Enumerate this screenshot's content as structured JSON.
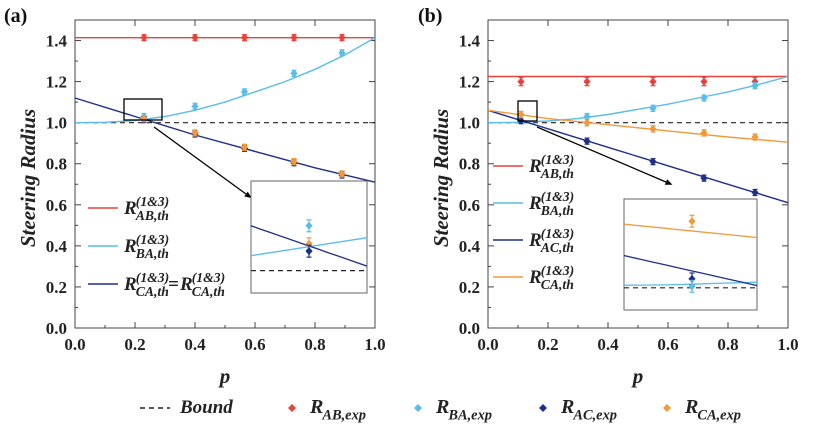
{
  "colors": {
    "AB": "#e8423a",
    "BA": "#5bbce8",
    "AC": "#1f2f88",
    "CA": "#f09a3a",
    "bound": "#222222",
    "axis": "#444444"
  },
  "chart_data": [
    {
      "panel": "(a)",
      "type": "line",
      "xlabel": "p",
      "ylabel": "Steering Radius",
      "xlim": [
        0.0,
        1.0
      ],
      "ylim": [
        0.0,
        1.5
      ],
      "xticks": [
        "0.0",
        "0.2",
        "0.4",
        "0.6",
        "0.8",
        "1.0"
      ],
      "yticks": [
        "0.0",
        "0.2",
        "0.4",
        "0.6",
        "0.8",
        "1.0",
        "1.2",
        "1.4"
      ],
      "bound": 1.0,
      "theory": [
        {
          "key": "AB",
          "x": [
            0,
            0.2,
            0.4,
            0.6,
            0.8,
            1.0
          ],
          "y": [
            1.414,
            1.414,
            1.414,
            1.414,
            1.414,
            1.414
          ]
        },
        {
          "key": "BA",
          "x": [
            0,
            0.1,
            0.2,
            0.3,
            0.4,
            0.5,
            0.6,
            0.7,
            0.8,
            0.9,
            1.0
          ],
          "y": [
            1.0,
            1.002,
            1.01,
            1.03,
            1.06,
            1.1,
            1.15,
            1.2,
            1.26,
            1.33,
            1.414
          ]
        },
        {
          "key": "AC",
          "x": [
            0,
            0.2,
            0.4,
            0.6,
            0.8,
            1.0
          ],
          "y": [
            1.12,
            1.03,
            0.94,
            0.86,
            0.78,
            0.71
          ]
        }
      ],
      "experiment": [
        {
          "key": "AB",
          "x": [
            0.23,
            0.4,
            0.565,
            0.73,
            0.89
          ],
          "y": [
            1.414,
            1.414,
            1.414,
            1.414,
            1.414
          ],
          "err": [
            0.008,
            0.008,
            0.008,
            0.008,
            0.008
          ]
        },
        {
          "key": "BA",
          "x": [
            0.23,
            0.4,
            0.565,
            0.73,
            0.89
          ],
          "y": [
            1.03,
            1.08,
            1.15,
            1.24,
            1.34
          ],
          "err": [
            0.012,
            0.012,
            0.012,
            0.012,
            0.012
          ]
        },
        {
          "key": "AC",
          "x": [
            0.23,
            0.4,
            0.565,
            0.73,
            0.89
          ],
          "y": [
            1.015,
            0.945,
            0.875,
            0.805,
            0.745
          ],
          "err": [
            0.01,
            0.01,
            0.01,
            0.01,
            0.01
          ]
        },
        {
          "key": "CA",
          "x": [
            0.23,
            0.4,
            0.565,
            0.73,
            0.89
          ],
          "y": [
            1.02,
            0.95,
            0.88,
            0.81,
            0.75
          ],
          "err": [
            0.012,
            0.012,
            0.012,
            0.012,
            0.012
          ]
        }
      ],
      "legend": [
        {
          "key": "AB",
          "sym": "R",
          "sup": "(1&3)",
          "sub": "AB,th"
        },
        {
          "key": "BA",
          "sym": "R",
          "sup": "(1&3)",
          "sub": "BA,th"
        },
        {
          "key": "AC",
          "sym": "R",
          "sup": "(1&3)",
          "sub": "CA,th",
          "eq": "=",
          "sym2": "R",
          "sup2": "(1&3)",
          "sub2": "CA,th"
        }
      ],
      "inset": {
        "source_box": "zoom",
        "x_range": [
          0.2,
          0.26
        ],
        "y_range": [
          0.985,
          1.06
        ],
        "points": [
          {
            "key": "BA",
            "x": 0.23,
            "y": 1.03
          },
          {
            "key": "CA",
            "x": 0.23,
            "y": 1.018
          },
          {
            "key": "AC",
            "x": 0.23,
            "y": 1.013
          }
        ]
      }
    },
    {
      "panel": "(b)",
      "type": "line",
      "xlabel": "p",
      "ylabel": "Steering Radius",
      "xlim": [
        0.0,
        1.0
      ],
      "ylim": [
        0.0,
        1.5
      ],
      "xticks": [
        "0.0",
        "0.2",
        "0.4",
        "0.6",
        "0.8",
        "1.0"
      ],
      "yticks": [
        "0.0",
        "0.2",
        "0.4",
        "0.6",
        "0.8",
        "1.0",
        "1.2",
        "1.4"
      ],
      "bound": 1.0,
      "theory": [
        {
          "key": "AB",
          "x": [
            0,
            0.2,
            0.4,
            0.6,
            0.8,
            1.0
          ],
          "y": [
            1.225,
            1.225,
            1.225,
            1.225,
            1.225,
            1.225
          ]
        },
        {
          "key": "BA",
          "x": [
            0,
            0.1,
            0.2,
            0.3,
            0.4,
            0.5,
            0.6,
            0.7,
            0.8,
            0.9,
            1.0
          ],
          "y": [
            1.0,
            1.002,
            1.008,
            1.02,
            1.04,
            1.065,
            1.09,
            1.12,
            1.15,
            1.185,
            1.225
          ]
        },
        {
          "key": "AC",
          "x": [
            0,
            0.2,
            0.4,
            0.6,
            0.8,
            1.0
          ],
          "y": [
            1.06,
            0.97,
            0.88,
            0.79,
            0.7,
            0.61
          ]
        },
        {
          "key": "CA",
          "x": [
            0,
            0.2,
            0.4,
            0.6,
            0.8,
            1.0
          ],
          "y": [
            1.06,
            1.02,
            0.99,
            0.96,
            0.93,
            0.905
          ]
        }
      ],
      "experiment": [
        {
          "key": "AB",
          "x": [
            0.11,
            0.33,
            0.55,
            0.72,
            0.89
          ],
          "y": [
            1.2,
            1.2,
            1.2,
            1.2,
            1.2
          ],
          "err": [
            0.02,
            0.02,
            0.02,
            0.02,
            0.02
          ]
        },
        {
          "key": "BA",
          "x": [
            0.11,
            0.33,
            0.55,
            0.72,
            0.89
          ],
          "y": [
            1.01,
            1.03,
            1.07,
            1.12,
            1.18
          ],
          "err": [
            0.012,
            0.012,
            0.012,
            0.012,
            0.012
          ]
        },
        {
          "key": "AC",
          "x": [
            0.11,
            0.33,
            0.55,
            0.72,
            0.89
          ],
          "y": [
            1.01,
            0.91,
            0.81,
            0.73,
            0.66
          ],
          "err": [
            0.01,
            0.01,
            0.01,
            0.01,
            0.01
          ]
        },
        {
          "key": "CA",
          "x": [
            0.11,
            0.33,
            0.55,
            0.72,
            0.89
          ],
          "y": [
            1.04,
            1.0,
            0.97,
            0.95,
            0.93
          ],
          "err": [
            0.015,
            0.015,
            0.015,
            0.015,
            0.015
          ]
        }
      ],
      "legend": [
        {
          "key": "AB",
          "sym": "R",
          "sup": "(1&3)",
          "sub": "AB,th"
        },
        {
          "key": "BA",
          "sym": "R",
          "sup": "(1&3)",
          "sub": "BA,th"
        },
        {
          "key": "AC",
          "sym": "R",
          "sup": "(1&3)",
          "sub": "AC,th"
        },
        {
          "key": "CA",
          "sym": "R",
          "sup": "(1&3)",
          "sub": "CA,th"
        }
      ],
      "inset": {
        "source_box": "zoom",
        "x_range": [
          0.085,
          0.13
        ],
        "y_range": [
          0.985,
          1.06
        ],
        "points": [
          {
            "key": "CA",
            "x": 0.108,
            "y": 1.045
          },
          {
            "key": "AC",
            "x": 0.108,
            "y": 1.006
          },
          {
            "key": "BA",
            "x": 0.108,
            "y": 1.001
          }
        ]
      }
    }
  ],
  "bottom_legend": {
    "bound_label": "Bound",
    "items": [
      {
        "key": "AB",
        "sym": "R",
        "sub": "AB,exp"
      },
      {
        "key": "BA",
        "sym": "R",
        "sub": "BA,exp"
      },
      {
        "key": "AC",
        "sym": "R",
        "sub": "AC,exp"
      },
      {
        "key": "CA",
        "sym": "R",
        "sub": "CA,exp"
      }
    ]
  }
}
